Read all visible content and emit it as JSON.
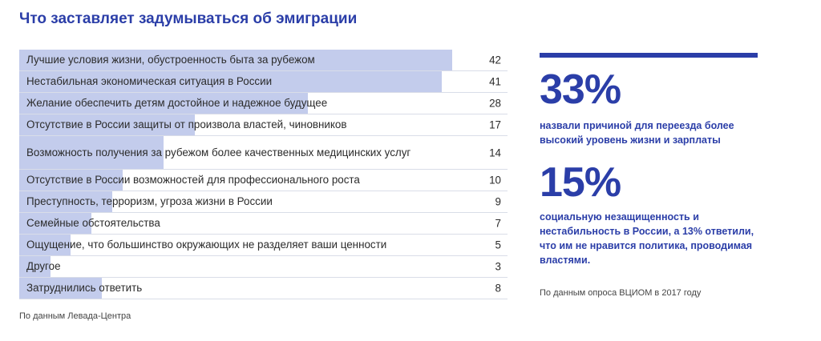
{
  "title": "Что заставляет задумываться об эмиграции",
  "colors": {
    "accent": "#2b3ea8",
    "bar": "#c3ccec"
  },
  "chart_data": {
    "type": "bar",
    "orientation": "horizontal",
    "categories": [
      "Лучшие условия жизни, обустроенность быта за рубежом",
      "Нестабильная экономическая ситуация в России",
      "Желание обеспечить детям достойное и надежное будущее",
      "Отсутствие в России защиты от произвола властей, чиновников",
      "Возможность получения за рубежом более качественных медицинских услуг",
      "Отсутствие в России возможностей для профессионального роста",
      "Преступность, терроризм, угроза жизни в России",
      "Семейные обстоятельства",
      "Ощущение, что большинство окружающих не разделяет ваши ценности",
      "Другое",
      "Затруднились ответить"
    ],
    "values": [
      42,
      41,
      28,
      17,
      14,
      10,
      9,
      7,
      5,
      3,
      8
    ],
    "xlim": [
      0,
      42
    ]
  },
  "source_left": "По данным Левада-Центра",
  "stats": {
    "first_value": "33%",
    "first_text": "назвали причиной для переезда более высокий уровень жизни и зарплаты",
    "second_value": "15%",
    "second_text": "социальную незащищенность и нестабильность в России, а 13% ответили, что им не нравится политика, проводимая властями.",
    "source": "По данным опроса ВЦИОМ в 2017 году"
  }
}
